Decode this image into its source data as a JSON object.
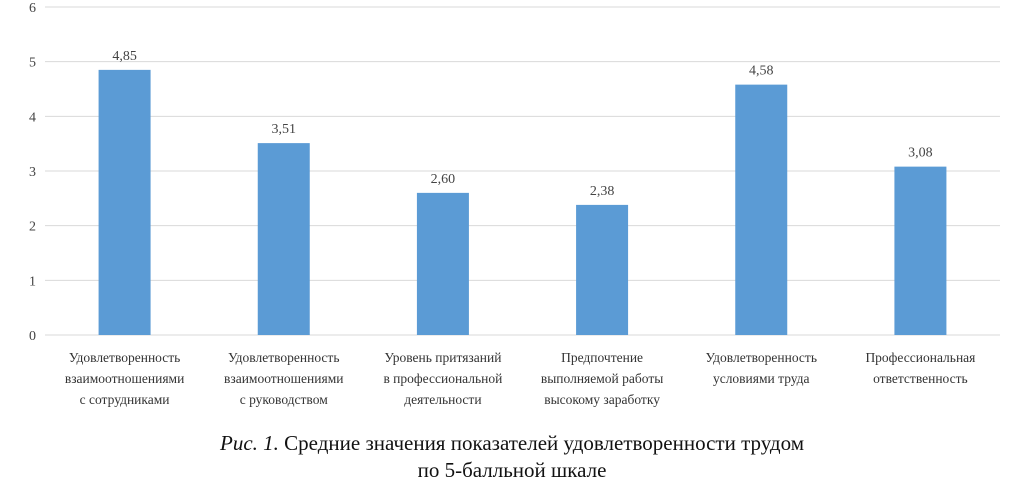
{
  "chart_data": {
    "type": "bar",
    "categories": [
      [
        "Удовлетворенность",
        "взаимоотношениями",
        "с сотрудниками"
      ],
      [
        "Удовлетворенность",
        "взаимоотношениями",
        "с руководством"
      ],
      [
        "Уровень притязаний",
        "в профессиональной",
        "деятельности"
      ],
      [
        "Предпочтение",
        "выполняемой работы",
        "высокому заработку"
      ],
      [
        "Удовлетворенность",
        "условиями труда"
      ],
      [
        "Профессиональная",
        "ответственность"
      ]
    ],
    "values": [
      4.85,
      3.51,
      2.6,
      2.38,
      4.58,
      3.08
    ],
    "data_labels": [
      "4,85",
      "3,51",
      "2,60",
      "2,38",
      "4,58",
      "3,08"
    ],
    "ylim": [
      0,
      6
    ],
    "yticks": [
      0,
      1,
      2,
      3,
      4,
      5,
      6
    ],
    "grid": true,
    "legend": "none",
    "bar_color": "#5b9bd5",
    "grid_color": "#d9d9d9"
  },
  "caption": {
    "prefix": "Рис. 1.",
    "line1": "Средние значения показателей удовлетворенности трудом",
    "line2": "по 5-балльной шкале"
  }
}
